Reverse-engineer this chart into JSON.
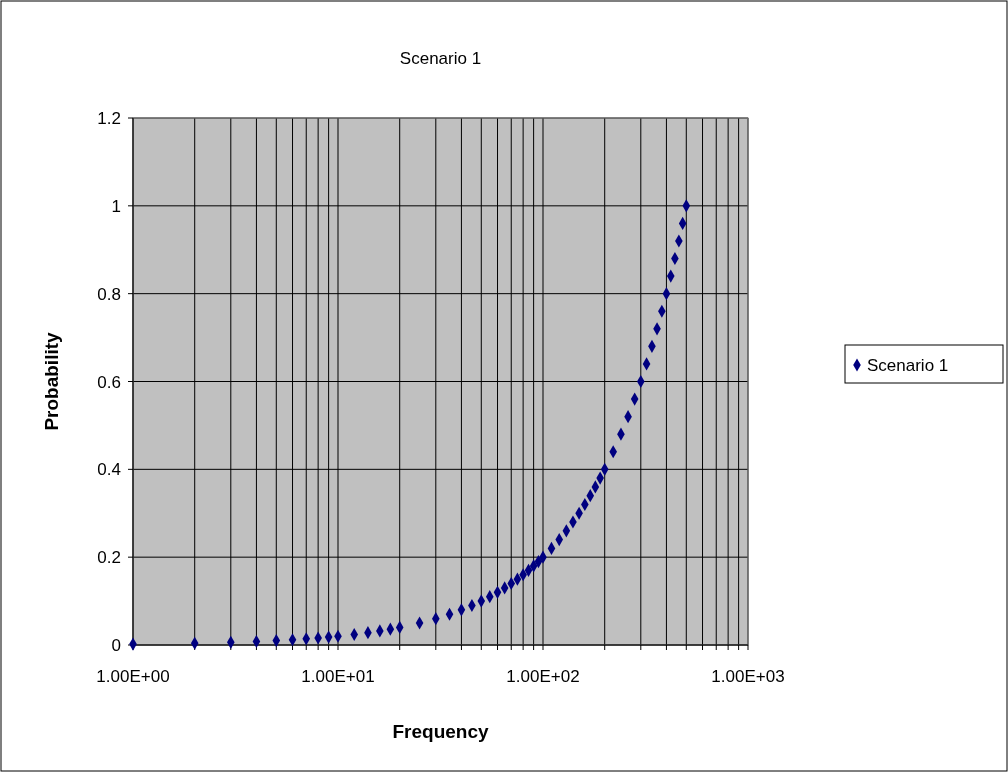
{
  "chart_data": {
    "type": "scatter",
    "title": "Scenario 1",
    "xlabel": "Frequency",
    "ylabel": "Probability",
    "x": [
      1,
      2,
      3,
      4,
      5,
      6,
      7,
      8,
      9,
      10,
      12,
      14,
      16,
      18,
      20,
      25,
      30,
      35,
      40,
      45,
      50,
      55,
      60,
      65,
      70,
      75,
      80,
      85,
      90,
      95,
      100,
      110,
      120,
      130,
      140,
      150,
      160,
      170,
      180,
      190,
      200,
      220,
      240,
      260,
      280,
      300,
      320,
      340,
      360,
      380,
      400,
      420,
      440,
      460,
      480,
      500
    ],
    "series": [
      {
        "name": "Scenario 1",
        "color": "#000080",
        "values": [
          0.002,
          0.004,
          0.006,
          0.008,
          0.01,
          0.012,
          0.014,
          0.016,
          0.018,
          0.02,
          0.024,
          0.028,
          0.032,
          0.036,
          0.04,
          0.05,
          0.06,
          0.07,
          0.08,
          0.09,
          0.1,
          0.11,
          0.12,
          0.13,
          0.14,
          0.15,
          0.16,
          0.17,
          0.18,
          0.19,
          0.2,
          0.22,
          0.24,
          0.26,
          0.28,
          0.3,
          0.32,
          0.34,
          0.36,
          0.38,
          0.4,
          0.44,
          0.48,
          0.52,
          0.56,
          0.6,
          0.64,
          0.68,
          0.72,
          0.76,
          0.8,
          0.84,
          0.88,
          0.92,
          0.96,
          1
        ]
      }
    ],
    "xlim": [
      1,
      1000
    ],
    "ylim": [
      0,
      1.2
    ],
    "xticks": [
      {
        "value": 1,
        "label": "1.00E+00"
      },
      {
        "value": 2,
        "label": null
      },
      {
        "value": 3,
        "label": null
      },
      {
        "value": 4,
        "label": null
      },
      {
        "value": 5,
        "label": null
      },
      {
        "value": 6,
        "label": null
      },
      {
        "value": 7,
        "label": null
      },
      {
        "value": 8,
        "label": null
      },
      {
        "value": 9,
        "label": null
      },
      {
        "value": 10,
        "label": "1.00E+01"
      },
      {
        "value": 20,
        "label": null
      },
      {
        "value": 30,
        "label": null
      },
      {
        "value": 40,
        "label": null
      },
      {
        "value": 50,
        "label": null
      },
      {
        "value": 60,
        "label": null
      },
      {
        "value": 70,
        "label": null
      },
      {
        "value": 80,
        "label": null
      },
      {
        "value": 90,
        "label": null
      },
      {
        "value": 100,
        "label": "1.00E+02"
      },
      {
        "value": 200,
        "label": null
      },
      {
        "value": 300,
        "label": null
      },
      {
        "value": 400,
        "label": null
      },
      {
        "value": 500,
        "label": null
      },
      {
        "value": 600,
        "label": null
      },
      {
        "value": 700,
        "label": null
      },
      {
        "value": 800,
        "label": null
      },
      {
        "value": 900,
        "label": null
      },
      {
        "value": 1000,
        "label": "1.00E+03"
      }
    ],
    "yticks": [
      0,
      0.2,
      0.4,
      0.6,
      0.8,
      1,
      1.2
    ],
    "log": "x",
    "grid": true,
    "legend": "right",
    "marker": "diamond"
  }
}
